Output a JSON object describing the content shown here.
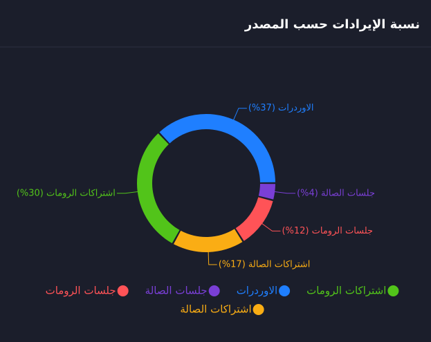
{
  "chart_data": {
    "type": "donut",
    "title": "نسبة الإيرادات حسب المصدر",
    "series": [
      {
        "name": "اشتراكات الرومات",
        "color": "#52c41a",
        "value": 30,
        "value_label": "اشتراكات الرومات (30%)"
      },
      {
        "name": "الاوردرات",
        "color": "#1f7fff",
        "value": 37,
        "value_label": "الاوردرات (37%)"
      },
      {
        "name": "جلسات الصالة",
        "color": "#7a3fd6",
        "value": 4,
        "value_label": "جلسات الصالة (4%)"
      },
      {
        "name": "جلسات الرومات",
        "color": "#ff5357",
        "value": 12,
        "value_label": "جلسات الرومات (12%)"
      },
      {
        "name": "اشتراكات الصالة",
        "color": "#faad14",
        "value": 17,
        "value_label": "اشتراكات الصالة (17%)"
      }
    ],
    "legend": "bottom"
  }
}
